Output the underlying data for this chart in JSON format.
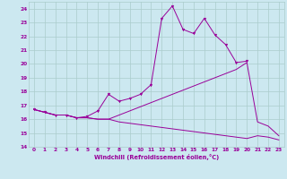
{
  "xlabel": "Windchill (Refroidissement éolien,°C)",
  "bg_color": "#cce8f0",
  "grid_color": "#aacccc",
  "line_color": "#990099",
  "xlim": [
    -0.5,
    23.5
  ],
  "ylim": [
    14,
    24.5
  ],
  "xticks": [
    0,
    1,
    2,
    3,
    4,
    5,
    6,
    7,
    8,
    9,
    10,
    11,
    12,
    13,
    14,
    15,
    16,
    17,
    18,
    19,
    20,
    21,
    22,
    23
  ],
  "yticks": [
    14,
    15,
    16,
    17,
    18,
    19,
    20,
    21,
    22,
    23,
    24
  ],
  "line1_x": [
    0,
    1,
    2,
    3,
    4,
    5,
    6,
    7,
    8,
    9,
    10,
    11,
    12,
    13,
    14,
    15,
    16,
    17,
    18,
    19,
    20
  ],
  "line1_y": [
    16.7,
    16.5,
    16.3,
    16.3,
    16.1,
    16.2,
    16.6,
    17.8,
    17.3,
    17.5,
    17.8,
    18.5,
    23.3,
    24.2,
    22.5,
    22.2,
    23.3,
    22.1,
    21.4,
    20.1,
    20.2
  ],
  "line2_x": [
    0,
    1,
    2,
    3,
    4,
    5,
    6,
    7,
    8,
    9,
    10,
    11,
    12,
    13,
    14,
    15,
    16,
    17,
    18,
    19,
    20,
    21,
    22,
    23
  ],
  "line2_y": [
    16.7,
    16.5,
    16.3,
    16.3,
    16.1,
    16.1,
    16.0,
    16.0,
    16.3,
    16.6,
    16.9,
    17.2,
    17.5,
    17.8,
    18.1,
    18.4,
    18.7,
    19.0,
    19.3,
    19.6,
    20.1,
    15.8,
    15.5,
    14.8
  ],
  "line3_x": [
    0,
    1,
    2,
    3,
    4,
    5,
    6,
    7,
    8,
    9,
    10,
    11,
    12,
    13,
    14,
    15,
    16,
    17,
    18,
    19,
    20,
    21,
    22,
    23
  ],
  "line3_y": [
    16.7,
    16.5,
    16.3,
    16.3,
    16.1,
    16.1,
    16.0,
    16.0,
    15.8,
    15.7,
    15.6,
    15.5,
    15.4,
    15.3,
    15.2,
    15.1,
    15.0,
    14.9,
    14.8,
    14.7,
    14.6,
    14.8,
    14.7,
    14.5
  ]
}
